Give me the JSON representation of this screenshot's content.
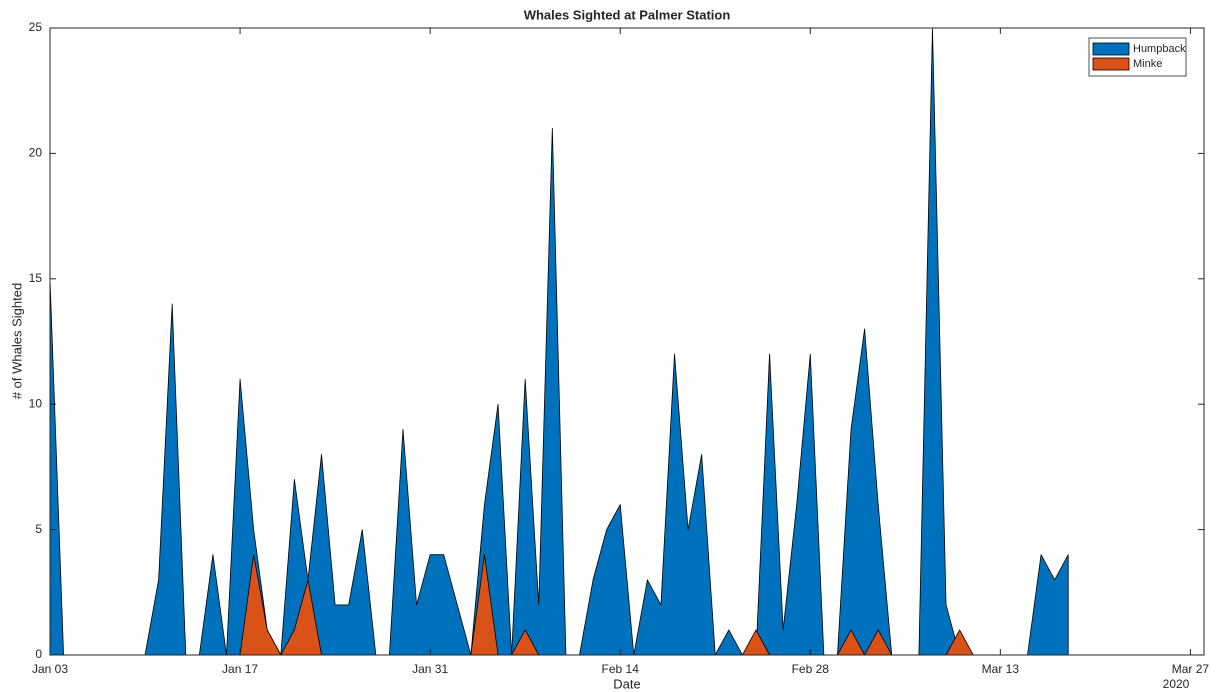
{
  "chart_data": {
    "type": "area",
    "title": "Whales Sighted at Palmer Station",
    "xlabel": "Date",
    "ylabel": "# of Whales Sighted",
    "x_year_label": "2020",
    "x": [
      "2020-01-03",
      "2020-01-04",
      "2020-01-05",
      "2020-01-06",
      "2020-01-07",
      "2020-01-08",
      "2020-01-09",
      "2020-01-10",
      "2020-01-11",
      "2020-01-12",
      "2020-01-13",
      "2020-01-14",
      "2020-01-15",
      "2020-01-16",
      "2020-01-17",
      "2020-01-18",
      "2020-01-19",
      "2020-01-20",
      "2020-01-21",
      "2020-01-22",
      "2020-01-23",
      "2020-01-24",
      "2020-01-25",
      "2020-01-26",
      "2020-01-27",
      "2020-01-28",
      "2020-01-29",
      "2020-01-30",
      "2020-01-31",
      "2020-02-01",
      "2020-02-02",
      "2020-02-03",
      "2020-02-04",
      "2020-02-05",
      "2020-02-06",
      "2020-02-07",
      "2020-02-08",
      "2020-02-09",
      "2020-02-10",
      "2020-02-11",
      "2020-02-12",
      "2020-02-13",
      "2020-02-14",
      "2020-02-15",
      "2020-02-16",
      "2020-02-17",
      "2020-02-18",
      "2020-02-19",
      "2020-02-20",
      "2020-02-21",
      "2020-02-22",
      "2020-02-23",
      "2020-02-24",
      "2020-02-25",
      "2020-02-26",
      "2020-02-27",
      "2020-02-28",
      "2020-02-29",
      "2020-03-01",
      "2020-03-02",
      "2020-03-03",
      "2020-03-04",
      "2020-03-05",
      "2020-03-06",
      "2020-03-07",
      "2020-03-08",
      "2020-03-09",
      "2020-03-10",
      "2020-03-11",
      "2020-03-12",
      "2020-03-13",
      "2020-03-14",
      "2020-03-15",
      "2020-03-16",
      "2020-03-17",
      "2020-03-18"
    ],
    "series": [
      {
        "name": "Humpback",
        "color": "#0072bd",
        "values": [
          15,
          0,
          0,
          0,
          0,
          0,
          0,
          0,
          3,
          14,
          0,
          0,
          4,
          0,
          11,
          5,
          1,
          0,
          7,
          3,
          8,
          2,
          2,
          5,
          0,
          0,
          9,
          2,
          4,
          4,
          2,
          0,
          6,
          10,
          0,
          11,
          2,
          21,
          0,
          0,
          3,
          5,
          6,
          0,
          3,
          2,
          12,
          5,
          8,
          0,
          1,
          0,
          0,
          12,
          1,
          6,
          12,
          0,
          0,
          9,
          13,
          6,
          0,
          0,
          0,
          25,
          2,
          0,
          0,
          0,
          0,
          0,
          0,
          4,
          3,
          4
        ]
      },
      {
        "name": "Minke",
        "color": "#d95319",
        "values": [
          0,
          0,
          0,
          0,
          0,
          0,
          0,
          0,
          0,
          0,
          0,
          0,
          0,
          0,
          0,
          4,
          1,
          0,
          1,
          3,
          0,
          0,
          0,
          0,
          0,
          0,
          0,
          0,
          0,
          0,
          0,
          0,
          4,
          0,
          0,
          1,
          0,
          0,
          0,
          0,
          0,
          0,
          0,
          0,
          0,
          0,
          0,
          0,
          0,
          0,
          0,
          0,
          1,
          0,
          0,
          0,
          0,
          0,
          0,
          1,
          0,
          1,
          0,
          0,
          0,
          0,
          0,
          1,
          0,
          0,
          0,
          0,
          0,
          0,
          0,
          0
        ]
      }
    ],
    "xlim": [
      "2020-01-03",
      "2020-03-28"
    ],
    "xticks": [
      {
        "value": "2020-01-03",
        "label": "Jan 03"
      },
      {
        "value": "2020-01-17",
        "label": "Jan 17"
      },
      {
        "value": "2020-01-31",
        "label": "Jan 31"
      },
      {
        "value": "2020-02-14",
        "label": "Feb 14"
      },
      {
        "value": "2020-02-28",
        "label": "Feb 28"
      },
      {
        "value": "2020-03-13",
        "label": "Mar 13"
      },
      {
        "value": "2020-03-27",
        "label": "Mar 27"
      }
    ],
    "ylim": [
      0,
      25
    ],
    "yticks": [
      0,
      5,
      10,
      15,
      20,
      25
    ],
    "grid": false,
    "legend": "northeast"
  }
}
